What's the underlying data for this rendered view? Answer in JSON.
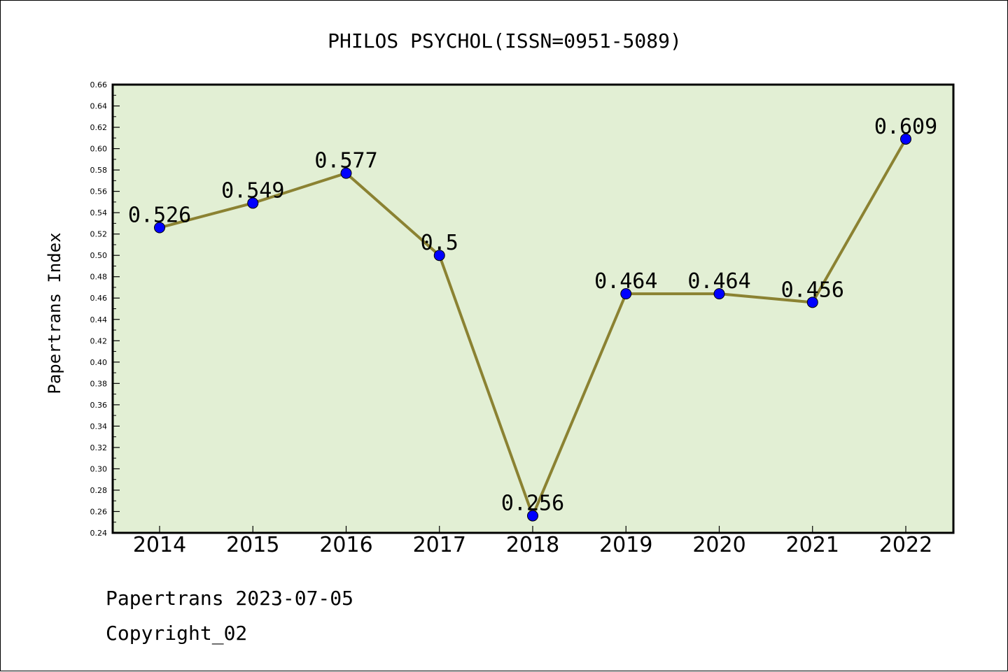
{
  "chart_data": {
    "type": "line",
    "title": "PHILOS PSYCHOL(ISSN=0951-5089)",
    "xlabel": "",
    "ylabel": "Papertrans Index",
    "categories": [
      "2014",
      "2015",
      "2016",
      "2017",
      "2018",
      "2019",
      "2020",
      "2021",
      "2022"
    ],
    "series": [
      {
        "values": [
          0.526,
          0.549,
          0.577,
          0.5,
          0.256,
          0.464,
          0.464,
          0.456,
          0.609
        ],
        "data_labels": [
          "0.526",
          "0.549",
          "0.577",
          "0.5",
          "0.256",
          "0.464",
          "0.464",
          "0.456",
          "0.609"
        ],
        "line_color": "#8b8232",
        "marker_color": "#0000ff"
      }
    ],
    "ylim": [
      0.24,
      0.66
    ],
    "y_ticks": [
      "0.24",
      "0.26",
      "0.28",
      "0.30",
      "0.32",
      "0.34",
      "0.36",
      "0.38",
      "0.40",
      "0.42",
      "0.44",
      "0.46",
      "0.48",
      "0.50",
      "0.52",
      "0.54",
      "0.56",
      "0.58",
      "0.60",
      "0.62",
      "0.64",
      "0.66"
    ],
    "grid": false,
    "legend": "none",
    "plot_background": "#e2efd4"
  },
  "footer": {
    "line1": "Papertrans 2023-07-05",
    "line2": "Copyright_02"
  }
}
